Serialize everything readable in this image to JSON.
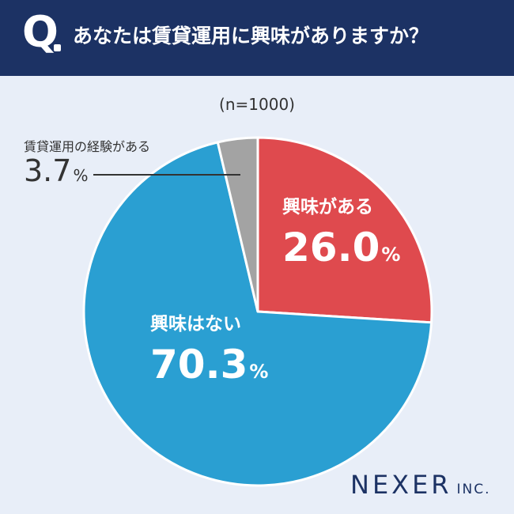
{
  "header": {
    "q_mark": "Q",
    "question": "あなたは賃貸運用に興味がありますか？"
  },
  "chart_data": {
    "type": "pie",
    "sample_label": "(n=1000)",
    "slices": [
      {
        "label": "興味がある",
        "value": 26.0,
        "display": "26.0",
        "color": "#df4a4e"
      },
      {
        "label": "興味はない",
        "value": 70.3,
        "display": "70.3",
        "color": "#2a9fd2"
      },
      {
        "label": "賃貸運用の経験がある",
        "value": 3.7,
        "display": "3.7",
        "color": "#a3a3a3"
      }
    ],
    "unit": "%"
  },
  "brand": {
    "name": "NEXER",
    "suffix": "INC."
  }
}
